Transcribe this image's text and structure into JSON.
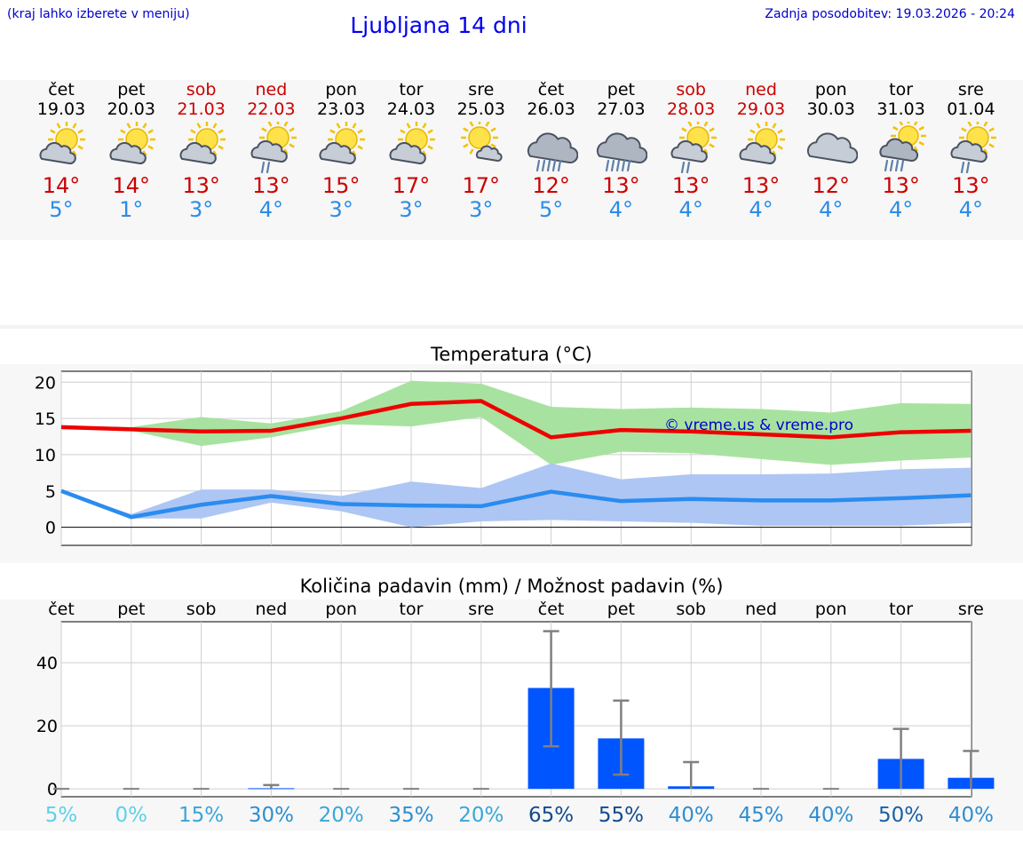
{
  "header": {
    "menu_hint": "(kraj lahko izberete v meniju)",
    "title": "Ljubljana 14 dni",
    "last_update": "Zadnja posodobitev: 19.03.2026 - 20:24"
  },
  "days": [
    {
      "name": "čet",
      "date": "19.03",
      "weekend": false,
      "icon": "sun-cloud-icon",
      "tmax": "14°",
      "tmin": "5°"
    },
    {
      "name": "pet",
      "date": "20.03",
      "weekend": false,
      "icon": "sun-cloud-icon",
      "tmax": "14°",
      "tmin": "1°"
    },
    {
      "name": "sob",
      "date": "21.03",
      "weekend": true,
      "icon": "sun-cloud-icon",
      "tmax": "13°",
      "tmin": "3°"
    },
    {
      "name": "ned",
      "date": "22.03",
      "weekend": true,
      "icon": "sun-cloud-rain-icon",
      "tmax": "13°",
      "tmin": "4°"
    },
    {
      "name": "pon",
      "date": "23.03",
      "weekend": false,
      "icon": "sun-cloud-icon",
      "tmax": "15°",
      "tmin": "3°"
    },
    {
      "name": "tor",
      "date": "24.03",
      "weekend": false,
      "icon": "sun-cloud-icon",
      "tmax": "17°",
      "tmin": "3°"
    },
    {
      "name": "sre",
      "date": "25.03",
      "weekend": false,
      "icon": "sun-small-cloud-icon",
      "tmax": "17°",
      "tmin": "3°"
    },
    {
      "name": "čet",
      "date": "26.03",
      "weekend": false,
      "icon": "cloud-heavy-rain-icon",
      "tmax": "12°",
      "tmin": "5°"
    },
    {
      "name": "pet",
      "date": "27.03",
      "weekend": false,
      "icon": "cloud-heavy-rain-icon",
      "tmax": "13°",
      "tmin": "4°"
    },
    {
      "name": "sob",
      "date": "28.03",
      "weekend": true,
      "icon": "sun-cloud-rain-icon",
      "tmax": "13°",
      "tmin": "4°"
    },
    {
      "name": "ned",
      "date": "29.03",
      "weekend": true,
      "icon": "sun-cloud-icon",
      "tmax": "13°",
      "tmin": "4°"
    },
    {
      "name": "pon",
      "date": "30.03",
      "weekend": false,
      "icon": "cloud-icon",
      "tmax": "12°",
      "tmin": "4°"
    },
    {
      "name": "tor",
      "date": "31.03",
      "weekend": false,
      "icon": "sun-cloud-heavy-rain-icon",
      "tmax": "13°",
      "tmin": "4°"
    },
    {
      "name": "sre",
      "date": "01.04",
      "weekend": false,
      "icon": "sun-cloud-rain-icon",
      "tmax": "13°",
      "tmin": "4°"
    }
  ],
  "colors": {
    "max_line": "#ee0000",
    "max_band": "#a8e2a0",
    "min_line": "#2a8cf0",
    "min_band": "#aec6f4",
    "bar": "#0055ff",
    "errbar": "#808080",
    "weekend": "#cc0000"
  },
  "chart_data": [
    {
      "type": "line",
      "title": "Temperatura (°C)",
      "watermark": "© vreme.us & vreme.pro",
      "ylim": [
        -2.5,
        21.5
      ],
      "yticks": [
        0,
        5,
        10,
        15,
        20
      ],
      "x": [
        "19.03",
        "20.03",
        "21.03",
        "22.03",
        "23.03",
        "24.03",
        "25.03",
        "26.03",
        "27.03",
        "28.03",
        "29.03",
        "30.03",
        "31.03",
        "01.04"
      ],
      "series": [
        {
          "role": "max",
          "values": [
            13.8,
            13.5,
            13.2,
            13.3,
            15.0,
            17.0,
            17.4,
            12.4,
            13.4,
            13.2,
            12.8,
            12.4,
            13.1,
            13.3
          ],
          "band_low": [
            13.5,
            13.3,
            11.2,
            12.4,
            14.2,
            13.9,
            15.2,
            8.6,
            10.4,
            10.2,
            9.4,
            8.6,
            9.2,
            9.6
          ],
          "band_high": [
            14.0,
            13.8,
            15.2,
            14.3,
            16.0,
            20.2,
            19.8,
            16.6,
            16.3,
            16.5,
            16.3,
            15.8,
            17.1,
            17.0
          ]
        },
        {
          "role": "min",
          "values": [
            5.0,
            1.4,
            3.1,
            4.3,
            3.2,
            3.0,
            2.9,
            4.9,
            3.6,
            3.9,
            3.7,
            3.7,
            4.0,
            4.4
          ],
          "band_low": [
            5.0,
            1.2,
            1.2,
            3.4,
            2.2,
            0.0,
            0.8,
            1.0,
            0.8,
            0.6,
            0.2,
            0.2,
            0.2,
            0.6
          ],
          "band_high": [
            5.0,
            1.8,
            5.2,
            5.2,
            4.3,
            6.3,
            5.4,
            8.8,
            6.6,
            7.3,
            7.3,
            7.4,
            8.0,
            8.2
          ]
        }
      ]
    },
    {
      "type": "bar",
      "title": "Količina padavin (mm) / Možnost padavin (%)",
      "ylim": [
        -2.5,
        53
      ],
      "yticks": [
        0,
        20,
        40
      ],
      "categories": [
        "čet",
        "pet",
        "sob",
        "ned",
        "pon",
        "tor",
        "sre",
        "čet",
        "pet",
        "sob",
        "ned",
        "pon",
        "tor",
        "sre"
      ],
      "values": [
        0,
        0,
        0,
        0.2,
        0,
        0,
        0,
        32,
        16,
        0.8,
        0,
        0,
        9.5,
        3.5
      ],
      "err_low": [
        0,
        0,
        0,
        0,
        0,
        0,
        0,
        13.5,
        4.5,
        0,
        0,
        0,
        0,
        0
      ],
      "err_high": [
        0,
        0,
        0,
        1.2,
        0,
        0,
        0,
        50,
        28,
        8.5,
        0,
        0,
        19,
        12
      ],
      "chance": [
        "5%",
        "0%",
        "15%",
        "30%",
        "20%",
        "35%",
        "20%",
        "65%",
        "55%",
        "40%",
        "45%",
        "40%",
        "50%",
        "40%"
      ]
    }
  ]
}
